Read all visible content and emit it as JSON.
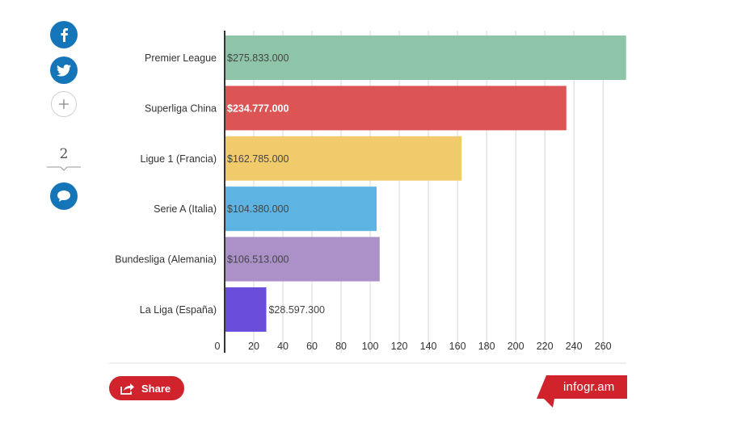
{
  "social": {
    "comment_count": "2",
    "icons": [
      "facebook-icon",
      "twitter-icon",
      "plus-icon",
      "comment-icon"
    ]
  },
  "chart_data": {
    "type": "bar",
    "orientation": "horizontal",
    "title": "",
    "xlabel": "",
    "ylabel": "",
    "categories": [
      "Premier League",
      "Superliga China",
      "Ligue 1 (Francia)",
      "Serie A (Italia)",
      "Bundesliga (Alemania)",
      "La Liga (España)"
    ],
    "values": [
      275.833,
      234.777,
      162.785,
      104.38,
      106.513,
      28.5973
    ],
    "value_labels": [
      "$275.833.000",
      "$234.777.000",
      "$162.785.000",
      "$104.380.000",
      "$106.513.000",
      "$28.597.300"
    ],
    "colors": [
      "#8ec5a9",
      "#dc5454",
      "#f0ca6b",
      "#5db4e2",
      "#ab91c8",
      "#6a4ddb"
    ],
    "label_colors": [
      "#444444",
      "#ffffff",
      "#444444",
      "#444444",
      "#444444",
      "#444444"
    ],
    "label_bold": [
      false,
      true,
      false,
      false,
      false,
      false
    ],
    "xlim": [
      0,
      276
    ],
    "xticks": [
      0,
      20,
      40,
      60,
      80,
      100,
      120,
      140,
      160,
      180,
      200,
      220,
      240,
      260
    ],
    "grid": true,
    "legend": "none"
  },
  "footer": {
    "share_label": "Share",
    "brand": "infogr.am",
    "accent": "#d0232b"
  }
}
